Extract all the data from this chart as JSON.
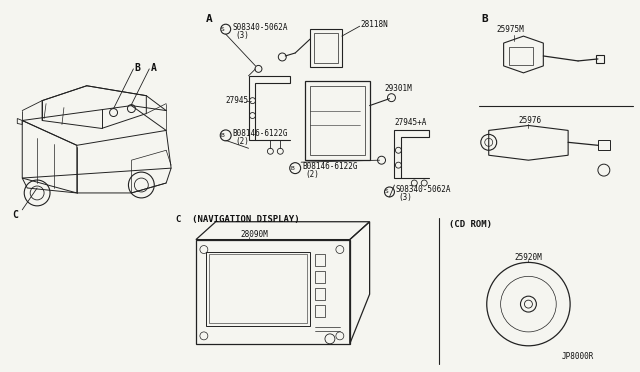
{
  "bg_color": "#f5f5f0",
  "line_color": "#222222",
  "text_color": "#111111",
  "fig_width": 6.4,
  "fig_height": 3.72,
  "dpi": 100,
  "diagram_ref": "JP8000R",
  "labels": {
    "section_A": "A",
    "section_B": "B",
    "section_C_label": "C  (NAVIGATION DISPLAY)",
    "cd_rom_label": "(CD ROM)",
    "part_28118N": "28118N",
    "part_29301M": "29301M",
    "part_27945": "27945",
    "part_27945A": "27945+A",
    "part_S1": "S08340-5062A",
    "part_S1_sub": "(3)",
    "part_S2": "S08340-5062A",
    "part_S2_sub": "(3)",
    "part_B1": "B08146-6122G",
    "part_B1_sub": "(2)",
    "part_B2": "B08146-6122G",
    "part_B2_sub": "(2)",
    "part_25975M": "25975M",
    "part_25976": "25976",
    "part_28090M": "28090M",
    "part_25920M": "25920M",
    "car_label_B": "B",
    "car_label_A": "A",
    "car_label_C": "C"
  }
}
